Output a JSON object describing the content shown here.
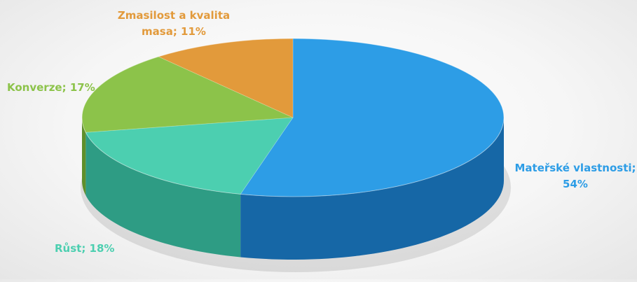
{
  "chart_data": {
    "type": "pie",
    "title": "",
    "slices": [
      {
        "label": "Mateřské vlastnosti",
        "label_text": [
          "Mateřské vlastnosti;",
          "54%"
        ],
        "value": 54,
        "color": "#2d9de6",
        "side_color": "#1667a6"
      },
      {
        "label": "Růst",
        "label_text": [
          "Růst; 18%"
        ],
        "value": 18,
        "color": "#4ccfb0",
        "side_color": "#2e9c84"
      },
      {
        "label": "Konverze",
        "label_text": [
          "Konverze; 17%"
        ],
        "value": 17,
        "color": "#8cc34a",
        "side_color": "#5f8f2c"
      },
      {
        "label": "Zmasilost a kvalita masa",
        "label_text": [
          "Zmasilost a kvalita",
          "masa; 11%"
        ],
        "value": 11,
        "color": "#e29a3b",
        "side_color": "#a86d22"
      }
    ],
    "style": "3d",
    "legend": "none"
  }
}
